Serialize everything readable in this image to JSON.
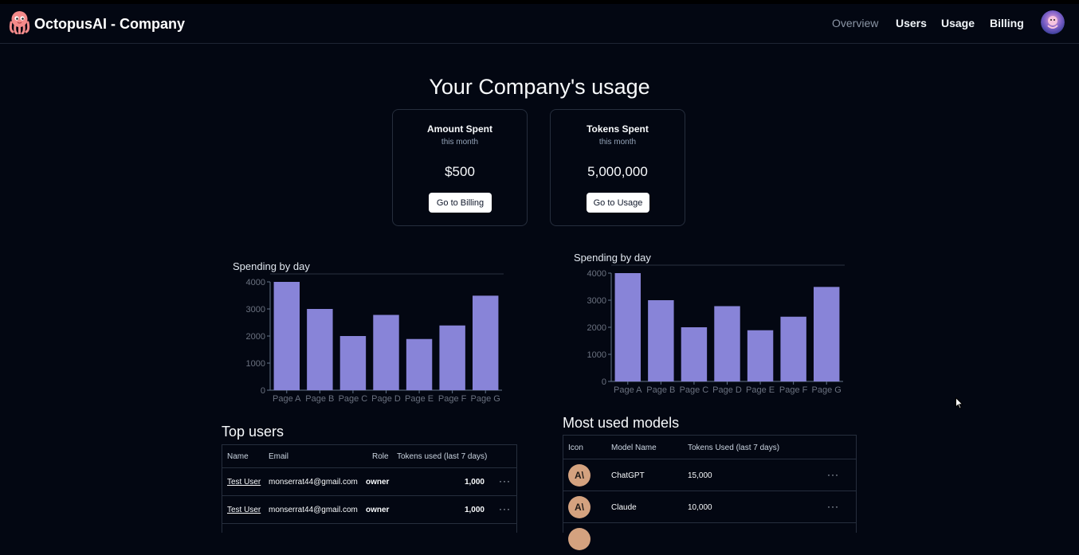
{
  "app": {
    "brand": "OctopusAI - Company"
  },
  "nav": {
    "items": [
      "Overview",
      "Users",
      "Usage",
      "Billing"
    ]
  },
  "page": {
    "title": "Your Company's usage"
  },
  "cards": [
    {
      "title": "Amount Spent",
      "subtitle": "this month",
      "value": "$500",
      "button": "Go to Billing"
    },
    {
      "title": "Tokens Spent",
      "subtitle": "this month",
      "value": "5,000,000",
      "button": "Go to Usage"
    }
  ],
  "chart_data": [
    {
      "type": "bar",
      "title": "Spending by day",
      "categories": [
        "Page A",
        "Page B",
        "Page C",
        "Page D",
        "Page E",
        "Page F",
        "Page G"
      ],
      "values": [
        4000,
        3000,
        2000,
        2780,
        1890,
        2390,
        3490
      ],
      "yticks": [
        0,
        1000,
        2000,
        3000,
        4000
      ],
      "ylim": [
        0,
        4000
      ],
      "color": "#8884d8"
    },
    {
      "type": "bar",
      "title": "Spending by day",
      "categories": [
        "Page A",
        "Page B",
        "Page C",
        "Page D",
        "Page E",
        "Page F",
        "Page G"
      ],
      "values": [
        4000,
        3000,
        2000,
        2780,
        1890,
        2390,
        3490
      ],
      "yticks": [
        0,
        1000,
        2000,
        3000,
        4000
      ],
      "ylim": [
        0,
        4000
      ],
      "color": "#8884d8"
    }
  ],
  "top_users": {
    "title": "Top users",
    "headers": [
      "Name",
      "Email",
      "Role",
      "Tokens used (last 7 days)"
    ],
    "rows": [
      {
        "name": "Test User",
        "email": "monserrat44@gmail.com",
        "role": "owner",
        "tokens": "1,000"
      },
      {
        "name": "Test User",
        "email": "monserrat44@gmail.com",
        "role": "owner",
        "tokens": "1,000"
      }
    ]
  },
  "models": {
    "title": "Most used models",
    "headers": [
      "Icon",
      "Model Name",
      "Tokens Used (last 7 days)"
    ],
    "rows": [
      {
        "icon": "anthropic-icon",
        "glyph": "A\\",
        "name": "ChatGPT",
        "tokens": "15,000"
      },
      {
        "icon": "anthropic-icon",
        "glyph": "A\\",
        "name": "Claude",
        "tokens": "10,000"
      }
    ]
  },
  "more_glyph": "···"
}
